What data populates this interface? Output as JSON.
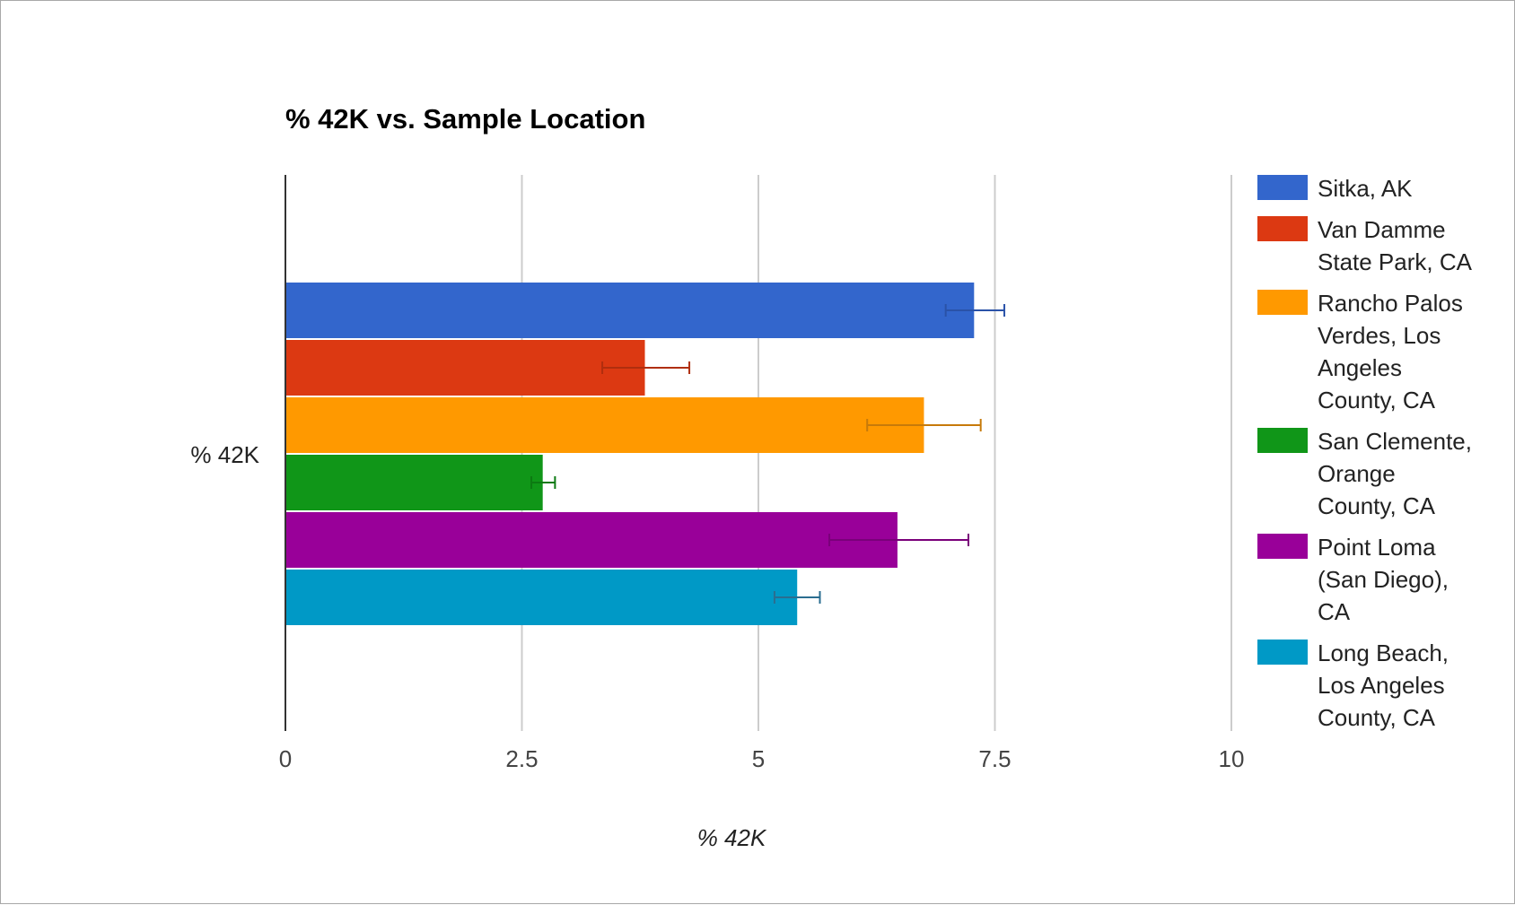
{
  "chart_data": {
    "type": "bar",
    "orientation": "horizontal",
    "title": "% 42K vs. Sample Location",
    "xlabel": "% 42K",
    "ylabel": "",
    "categories": [
      "% 42K"
    ],
    "xlim": [
      0,
      10
    ],
    "x_ticks": [
      "0",
      "2.5",
      "5",
      "7.5",
      "10"
    ],
    "grid": true,
    "legend_position": "right",
    "series": [
      {
        "name": "Sitka, AK",
        "legend_lines": [
          "Sitka, AK"
        ],
        "color": "#3366cc",
        "error_color": "#2a52a8",
        "values": [
          7.28
        ],
        "error_low": [
          6.98
        ],
        "error_high": [
          7.6
        ]
      },
      {
        "name": "Van Damme State Park, CA",
        "legend_lines": [
          "Van Damme",
          "State Park, CA"
        ],
        "color": "#dc3912",
        "error_color": "#b02e0e",
        "values": [
          3.8
        ],
        "error_low": [
          3.35
        ],
        "error_high": [
          4.27
        ]
      },
      {
        "name": "Rancho Palos Verdes, Los Angeles County, CA",
        "legend_lines": [
          "Rancho Palos",
          "Verdes, Los",
          "Angeles",
          "County, CA"
        ],
        "color": "#ff9900",
        "error_color": "#c77a0a",
        "values": [
          6.75
        ],
        "error_low": [
          6.15
        ],
        "error_high": [
          7.35
        ]
      },
      {
        "name": "San Clemente, Orange County, CA",
        "legend_lines": [
          "San Clemente,",
          "Orange",
          "County, CA"
        ],
        "color": "#109618",
        "error_color": "#0c7a12",
        "values": [
          2.72
        ],
        "error_low": [
          2.6
        ],
        "error_high": [
          2.85
        ]
      },
      {
        "name": "Point Loma (San Diego), CA",
        "legend_lines": [
          "Point Loma",
          "(San Diego),",
          "CA"
        ],
        "color": "#990099",
        "error_color": "#7a007a",
        "values": [
          6.47
        ],
        "error_low": [
          5.75
        ],
        "error_high": [
          7.22
        ]
      },
      {
        "name": "Long Beach, Los Angeles County, CA",
        "legend_lines": [
          "Long Beach,",
          "Los Angeles",
          "County, CA"
        ],
        "color": "#0099c6",
        "error_color": "#2b6e90",
        "values": [
          5.41
        ],
        "error_low": [
          5.17
        ],
        "error_high": [
          5.65
        ]
      }
    ]
  }
}
